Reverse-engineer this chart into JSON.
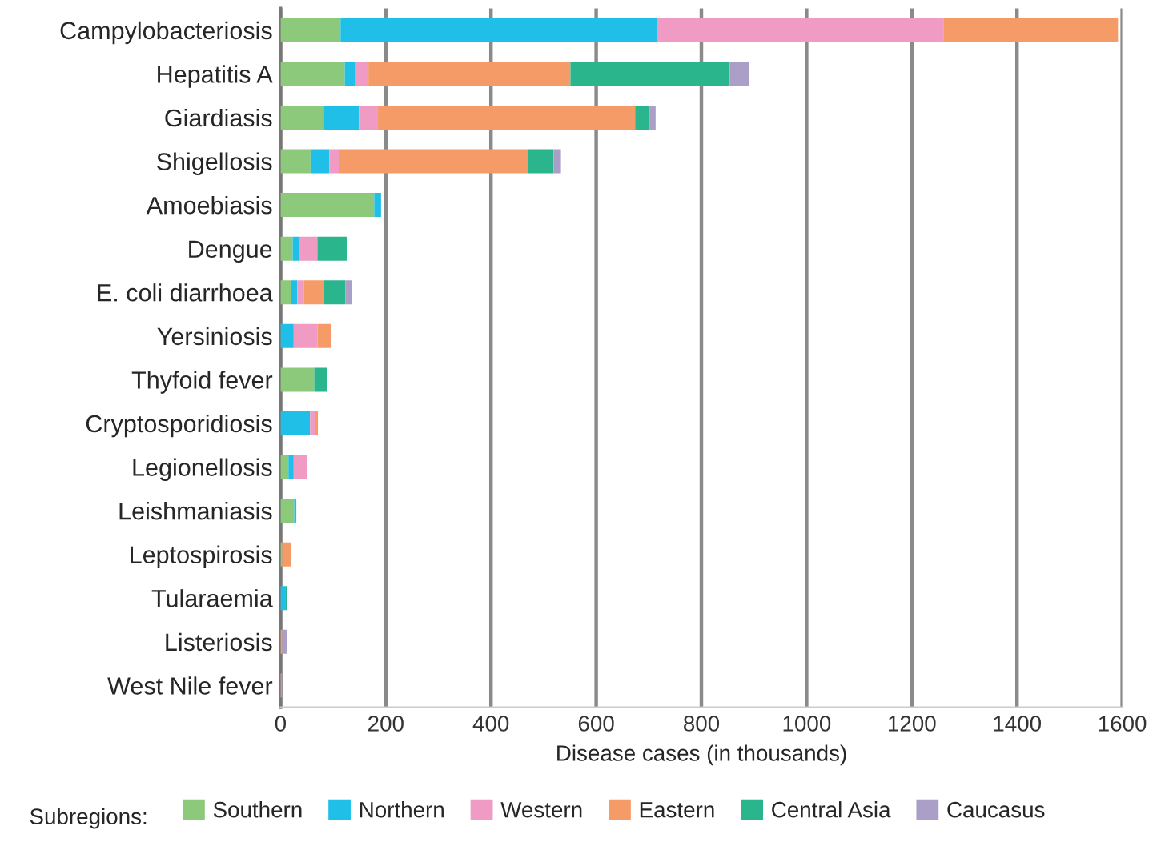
{
  "chart_data": {
    "type": "bar",
    "orientation": "horizontal",
    "stacked": true,
    "categories": [
      "Campylobacteriosis",
      "Hepatitis A",
      "Giardiasis",
      "Shigellosis",
      "Amoebiasis",
      "Dengue",
      "E. coli diarrhoea",
      "Yersiniosis",
      "Thyfoid fever",
      "Cryptosporidiosis",
      "Legionellosis",
      "Leishmaniasis",
      "Leptospirosis",
      "Tularaemia",
      "Listeriosis",
      "West Nile fever"
    ],
    "series": [
      {
        "name": "Southern",
        "color": "#8cc97a",
        "values": [
          114,
          122,
          82,
          57,
          178,
          23,
          20,
          0,
          64,
          0,
          15,
          26,
          3,
          0,
          0,
          0
        ]
      },
      {
        "name": "Northern",
        "color": "#1fbfe8",
        "values": [
          602,
          20,
          67,
          36,
          13,
          12,
          12,
          25,
          0,
          56,
          10,
          4,
          0,
          10,
          0,
          0
        ]
      },
      {
        "name": "Western",
        "color": "#ef9bc4",
        "values": [
          544,
          25,
          36,
          19,
          0,
          35,
          12,
          45,
          0,
          9,
          25,
          0,
          0,
          0,
          0,
          2
        ]
      },
      {
        "name": "Eastern",
        "color": "#f59b67",
        "values": [
          332,
          384,
          489,
          358,
          0,
          0,
          39,
          26,
          0,
          6,
          0,
          0,
          17,
          0,
          3,
          0
        ]
      },
      {
        "name": "Central Asia",
        "color": "#2bb58c",
        "values": [
          0,
          303,
          28,
          49,
          0,
          56,
          40,
          0,
          24,
          0,
          0,
          0,
          0,
          3,
          0,
          0
        ]
      },
      {
        "name": "Caucasus",
        "color": "#ab9fc8",
        "values": [
          0,
          36,
          11,
          14,
          0,
          0,
          12,
          0,
          0,
          0,
          0,
          0,
          0,
          0,
          10,
          0
        ]
      }
    ],
    "xlabel": "Disease cases (in thousands)",
    "legend_title": "Subregions:",
    "xlim": [
      0,
      1600
    ],
    "xticks": [
      0,
      200,
      400,
      600,
      800,
      1000,
      1200,
      1400,
      1600
    ],
    "grid": "x",
    "legend": "bottom"
  }
}
